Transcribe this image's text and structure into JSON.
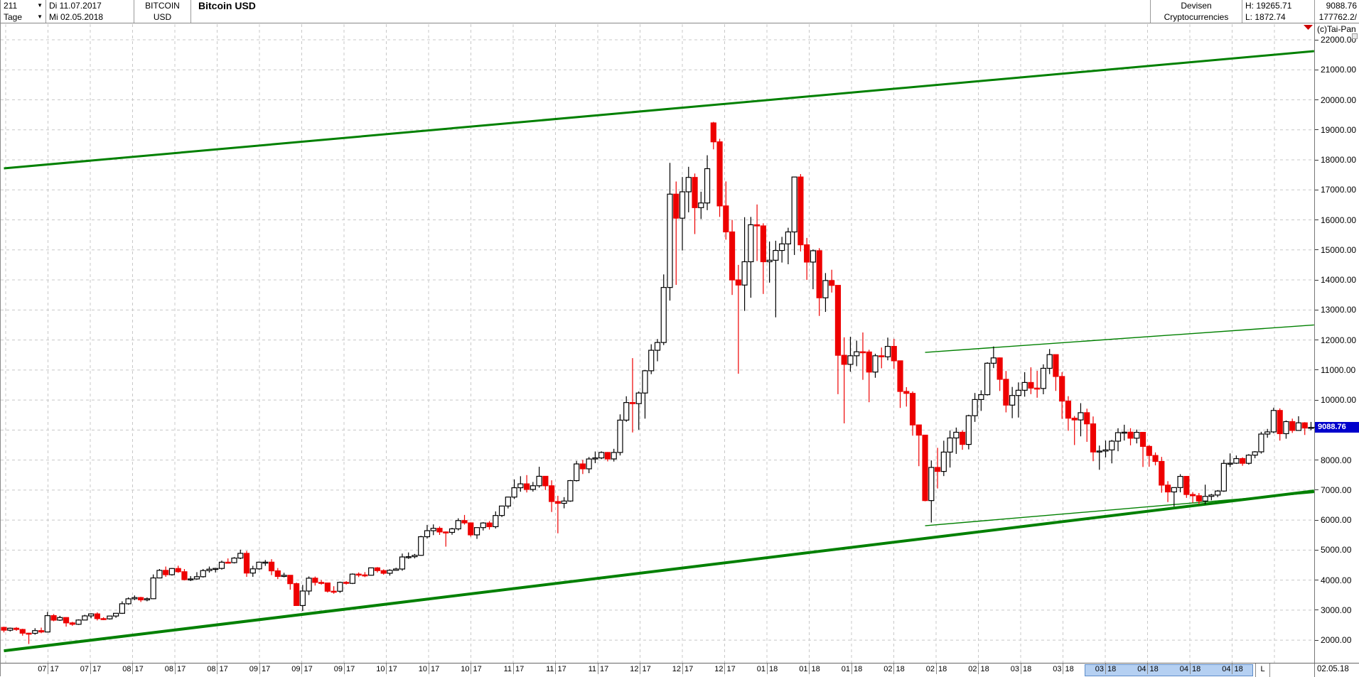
{
  "header": {
    "bars_count": "211",
    "period": "Tage",
    "dropdown_arrow": "▼",
    "date_from": "Di 11.07.2017",
    "date_to": "Mi 02.05.2018",
    "symbol_line1": "BITCOIN",
    "symbol_line2": "USD",
    "title": "Bitcoin USD",
    "category_line1": "Devisen",
    "category_line2": "Cryptocurrencies",
    "high_label": "H: 19265.71",
    "low_label": "L: 1872.74",
    "last_price": "9088.76",
    "volume": "177762.2/",
    "copyright": "(c)Tai-Pan"
  },
  "axis": {
    "price_ticks": [
      "22000.00",
      "21000.00",
      "20000.00",
      "19000.00",
      "18000.00",
      "17000.00",
      "16000.00",
      "15000.00",
      "14000.00",
      "13000.00",
      "12000.00",
      "11000.00",
      "10000.00",
      "9000.00",
      "8000.00",
      "7000.00",
      "6000.00",
      "5000.00",
      "4000.00",
      "3000.00",
      "2000.00"
    ],
    "price_values": [
      22000,
      21000,
      20000,
      19000,
      18000,
      17000,
      16000,
      15000,
      14000,
      13000,
      12000,
      11000,
      10000,
      9000,
      8000,
      7000,
      6000,
      5000,
      4000,
      3000,
      2000
    ],
    "current_price": 9088.76,
    "current_price_label": "9088.76",
    "date_ticks": [
      "07 17",
      "07 17",
      "08 17",
      "08 17",
      "08 17",
      "09 17",
      "09 17",
      "09 17",
      "10 17",
      "10 17",
      "10 17",
      "11 17",
      "11 17",
      "11 17",
      "12 17",
      "12 17",
      "12 17",
      "01 18",
      "01 18",
      "01 18",
      "02 18",
      "02 18",
      "02 18",
      "03 18",
      "03 18",
      "03 18",
      "04 18",
      "04 18",
      "04 18"
    ],
    "highlight_from": 25,
    "highlight_to": 28,
    "l_label": "L",
    "last_date_label": "02.05.18"
  },
  "chart_data": {
    "type": "candlestick",
    "title": "Bitcoin USD",
    "timeframe": "daily (Tage), weekdays 11.07.2017 - 02.05.2018",
    "bars": 211,
    "period_high": 19265.71,
    "period_low": 1872.74,
    "last": 9088.76,
    "ylim": [
      2000,
      22000
    ],
    "grid": "dashed",
    "ohlc": [
      [
        2425,
        2448,
        2260,
        2332
      ],
      [
        2332,
        2418,
        2290,
        2398
      ],
      [
        2398,
        2436,
        2310,
        2357
      ],
      [
        2357,
        2380,
        2150,
        2233
      ],
      [
        2233,
        2245,
        1873,
        2228
      ],
      [
        2228,
        2398,
        2183,
        2318
      ],
      [
        2318,
        2418,
        2232,
        2273
      ],
      [
        2273,
        2940,
        2263,
        2817
      ],
      [
        2817,
        2870,
        2630,
        2667
      ],
      [
        2667,
        2810,
        2642,
        2754
      ],
      [
        2754,
        2764,
        2451,
        2576
      ],
      [
        2576,
        2610,
        2478,
        2529
      ],
      [
        2529,
        2693,
        2508,
        2671
      ],
      [
        2671,
        2845,
        2667,
        2809
      ],
      [
        2809,
        2896,
        2729,
        2875
      ],
      [
        2875,
        2925,
        2657,
        2718
      ],
      [
        2718,
        2762,
        2668,
        2710
      ],
      [
        2710,
        2813,
        2685,
        2804
      ],
      [
        2804,
        2899,
        2744,
        2895
      ],
      [
        2895,
        3293,
        2874,
        3213
      ],
      [
        3213,
        3425,
        3180,
        3378
      ],
      [
        3378,
        3489,
        3333,
        3419
      ],
      [
        3419,
        3443,
        3272,
        3342
      ],
      [
        3342,
        3423,
        3295,
        3381
      ],
      [
        3381,
        4190,
        3367,
        4073
      ],
      [
        4073,
        4370,
        4060,
        4325
      ],
      [
        4325,
        4453,
        4110,
        4181
      ],
      [
        4181,
        4403,
        4150,
        4387
      ],
      [
        4387,
        4480,
        4243,
        4280
      ],
      [
        4280,
        4370,
        3991,
        4016
      ],
      [
        4016,
        4135,
        3970,
        4040
      ],
      [
        4040,
        4265,
        4013,
        4114
      ],
      [
        4114,
        4371,
        4085,
        4318
      ],
      [
        4318,
        4453,
        4251,
        4364
      ],
      [
        4364,
        4408,
        4255,
        4390
      ],
      [
        4390,
        4649,
        4350,
        4597
      ],
      [
        4597,
        4723,
        4566,
        4583
      ],
      [
        4583,
        4766,
        4556,
        4735
      ],
      [
        4735,
        5014,
        4700,
        4892
      ],
      [
        4892,
        4975,
        4108,
        4236
      ],
      [
        4236,
        4477,
        4110,
        4376
      ],
      [
        4376,
        4617,
        4345,
        4597
      ],
      [
        4597,
        4671,
        4475,
        4599
      ],
      [
        4599,
        4697,
        4166,
        4309
      ],
      [
        4309,
        4402,
        4032,
        4122
      ],
      [
        4122,
        4245,
        4094,
        4161
      ],
      [
        4161,
        4161,
        3681,
        3882
      ],
      [
        3882,
        3920,
        3143,
        3154
      ],
      [
        3154,
        3841,
        2972,
        3637
      ],
      [
        3637,
        4123,
        3505,
        4065
      ],
      [
        4065,
        4119,
        3820,
        3924
      ],
      [
        3924,
        4005,
        3851,
        3905
      ],
      [
        3905,
        3916,
        3587,
        3631
      ],
      [
        3631,
        3797,
        3547,
        3630
      ],
      [
        3630,
        3950,
        3576,
        3926
      ],
      [
        3926,
        3969,
        3853,
        3892
      ],
      [
        3892,
        4224,
        3870,
        4200
      ],
      [
        4200,
        4256,
        4102,
        4174
      ],
      [
        4174,
        4266,
        4100,
        4163
      ],
      [
        4163,
        4419,
        4150,
        4409
      ],
      [
        4409,
        4435,
        4254,
        4317
      ],
      [
        4317,
        4358,
        4183,
        4229
      ],
      [
        4229,
        4362,
        4151,
        4328
      ],
      [
        4328,
        4413,
        4320,
        4370
      ],
      [
        4370,
        4885,
        4313,
        4772
      ],
      [
        4772,
        4922,
        4709,
        4781
      ],
      [
        4781,
        4873,
        4724,
        4826
      ],
      [
        4826,
        5474,
        4811,
        5446
      ],
      [
        5446,
        5840,
        5385,
        5647
      ],
      [
        5647,
        5857,
        5499,
        5725
      ],
      [
        5725,
        5787,
        5506,
        5605
      ],
      [
        5605,
        5624,
        5115,
        5590
      ],
      [
        5590,
        5742,
        5512,
        5708
      ],
      [
        5708,
        6060,
        5655,
        5984
      ],
      [
        5984,
        6171,
        5851,
        5907
      ],
      [
        5907,
        5925,
        5450,
        5508
      ],
      [
        5508,
        5762,
        5374,
        5750
      ],
      [
        5750,
        5930,
        5653,
        5904
      ],
      [
        5904,
        5969,
        5684,
        5780
      ],
      [
        5780,
        6290,
        5720,
        6153
      ],
      [
        6153,
        6480,
        6103,
        6468
      ],
      [
        6468,
        6781,
        6387,
        6767
      ],
      [
        6767,
        7355,
        6703,
        7078
      ],
      [
        7078,
        7462,
        6945,
        7207
      ],
      [
        7207,
        7499,
        6920,
        7022
      ],
      [
        7022,
        7270,
        6950,
        7144
      ],
      [
        7144,
        7776,
        7080,
        7459
      ],
      [
        7459,
        7468,
        7001,
        7143
      ],
      [
        7143,
        7325,
        6270,
        6618
      ],
      [
        6618,
        6810,
        5560,
        6559
      ],
      [
        6559,
        6765,
        6392,
        6635
      ],
      [
        6635,
        7336,
        6610,
        7315
      ],
      [
        7315,
        7973,
        7286,
        7871
      ],
      [
        7871,
        8005,
        7534,
        7708
      ],
      [
        7708,
        8101,
        7563,
        8036
      ],
      [
        8036,
        8285,
        7897,
        8071
      ],
      [
        8071,
        8290,
        8031,
        8253
      ],
      [
        8253,
        8268,
        7956,
        8038
      ],
      [
        8038,
        8374,
        7952,
        8253
      ],
      [
        8253,
        9522,
        8153,
        9330
      ],
      [
        9330,
        10125,
        9273,
        9916
      ],
      [
        9916,
        11395,
        8919,
        9879
      ],
      [
        9879,
        10285,
        9011,
        10233
      ],
      [
        10233,
        11000,
        9380,
        10975
      ],
      [
        10975,
        11858,
        10862,
        11657
      ],
      [
        11657,
        12032,
        11290,
        11916
      ],
      [
        11916,
        14184,
        11830,
        13749
      ],
      [
        13749,
        17899,
        13311,
        16858
      ],
      [
        16858,
        17280,
        13836,
        16057
      ],
      [
        16057,
        17428,
        14980,
        16936
      ],
      [
        16936,
        17769,
        16252,
        17415
      ],
      [
        17415,
        17545,
        15528,
        16408
      ],
      [
        16408,
        16939,
        16030,
        16564
      ],
      [
        16564,
        18154,
        16324,
        17706
      ],
      [
        19231,
        19266,
        18350,
        18600
      ],
      [
        18600,
        18700,
        16100,
        16466
      ],
      [
        16466,
        17281,
        15342,
        15600
      ],
      [
        15600,
        16000,
        13500,
        14000
      ],
      [
        14000,
        14500,
        10875,
        13830
      ],
      [
        13830,
        16091,
        12969,
        14606
      ],
      [
        14606,
        16099,
        13406,
        15838
      ],
      [
        15838,
        16514,
        14631,
        15800
      ],
      [
        15800,
        15887,
        13533,
        14606
      ],
      [
        14606,
        15279,
        13910,
        14656
      ],
      [
        14656,
        15306,
        12755,
        14982
      ],
      [
        14982,
        15435,
        14579,
        15201
      ],
      [
        15201,
        15739,
        14522,
        15599
      ],
      [
        15599,
        17176,
        14832,
        17429
      ],
      [
        17429,
        17527,
        14950,
        15170
      ],
      [
        15170,
        15400,
        14000,
        14595
      ],
      [
        14595,
        15018,
        13691,
        14973
      ],
      [
        14973,
        15059,
        12801,
        13405
      ],
      [
        13405,
        14229,
        12935,
        13980
      ],
      [
        13980,
        14340,
        13580,
        13819
      ],
      [
        13819,
        13819,
        10194,
        11490
      ],
      [
        11490,
        12088,
        9222,
        11188
      ],
      [
        11188,
        12107,
        10942,
        11474
      ],
      [
        11474,
        11979,
        11126,
        11607
      ],
      [
        11607,
        12250,
        10673,
        11600
      ],
      [
        11600,
        11675,
        9927,
        10931
      ],
      [
        10931,
        11542,
        10741,
        11474
      ],
      [
        11474,
        11749,
        11057,
        11440
      ],
      [
        11440,
        12079,
        11322,
        11786
      ],
      [
        11786,
        12040,
        11031,
        11306
      ],
      [
        11306,
        11306,
        9736,
        10285
      ],
      [
        10285,
        10429,
        9781,
        10221
      ],
      [
        10221,
        10288,
        8812,
        9170
      ],
      [
        9170,
        9174,
        7796,
        8830
      ],
      [
        8830,
        8830,
        6626,
        6650
      ],
      [
        6650,
        7988,
        5920,
        7754
      ],
      [
        7754,
        8408,
        7054,
        7621
      ],
      [
        7621,
        8645,
        7466,
        8265
      ],
      [
        8265,
        8983,
        7751,
        8736
      ],
      [
        8736,
        9082,
        8205,
        8926
      ],
      [
        8926,
        8985,
        8342,
        8521
      ],
      [
        8521,
        9510,
        8355,
        9477
      ],
      [
        9477,
        10234,
        9272,
        10016
      ],
      [
        10016,
        10324,
        9637,
        10178
      ],
      [
        10178,
        11259,
        10149,
        11225
      ],
      [
        11225,
        11784,
        11064,
        11403
      ],
      [
        11403,
        11418,
        10301,
        10690
      ],
      [
        10690,
        10967,
        9588,
        9830
      ],
      [
        9830,
        10436,
        9395,
        10151
      ],
      [
        10151,
        10587,
        9416,
        10325
      ],
      [
        10325,
        10929,
        10111,
        10584
      ],
      [
        10584,
        11089,
        10196,
        10397
      ],
      [
        10397,
        10973,
        10076,
        10385
      ],
      [
        10385,
        11189,
        10191,
        11056
      ],
      [
        11056,
        11698,
        10863,
        11512
      ],
      [
        11512,
        11512,
        10303,
        10784
      ],
      [
        10784,
        10928,
        9373,
        9965
      ],
      [
        9965,
        10128,
        8975,
        9395
      ],
      [
        9395,
        9468,
        8500,
        9337
      ],
      [
        9337,
        9895,
        8790,
        9578
      ],
      [
        9578,
        9711,
        8607,
        9205
      ],
      [
        9205,
        9452,
        7962,
        8269
      ],
      [
        8269,
        8483,
        7676,
        8300
      ],
      [
        8300,
        8650,
        8091,
        8338
      ],
      [
        8338,
        8671,
        7890,
        8630
      ],
      [
        8630,
        9060,
        8294,
        8913
      ],
      [
        8913,
        9177,
        8650,
        8929
      ],
      [
        8929,
        9060,
        8490,
        8728
      ],
      [
        8728,
        9016,
        8555,
        8923
      ],
      [
        8923,
        8923,
        7770,
        8455
      ],
      [
        8455,
        8503,
        7778,
        8152
      ],
      [
        8152,
        8254,
        7823,
        7954
      ],
      [
        7954,
        8105,
        6912,
        7165
      ],
      [
        7165,
        7296,
        6600,
        6938
      ],
      [
        6938,
        7090,
        6450,
        7083
      ],
      [
        7083,
        7530,
        6925,
        7456
      ],
      [
        7456,
        7456,
        6740,
        6853
      ],
      [
        6853,
        6933,
        6579,
        6811
      ],
      [
        6811,
        6900,
        6530,
        6636
      ],
      [
        6636,
        7180,
        6526,
        6790
      ],
      [
        6790,
        6872,
        6660,
        6834
      ],
      [
        6834,
        7000,
        6764,
        6968
      ],
      [
        6968,
        8010,
        6940,
        7889
      ],
      [
        7889,
        8222,
        7769,
        7895
      ],
      [
        7895,
        8152,
        7871,
        8048
      ],
      [
        8048,
        8091,
        7810,
        7892
      ],
      [
        7892,
        8197,
        7848,
        8163
      ],
      [
        8163,
        8298,
        8060,
        8274
      ],
      [
        8274,
        8940,
        8215,
        8866
      ],
      [
        8866,
        9038,
        8742,
        8938
      ],
      [
        8938,
        9745,
        8894,
        9652
      ],
      [
        9652,
        9722,
        8647,
        8879
      ],
      [
        8879,
        9319,
        8711,
        9281
      ],
      [
        9281,
        9380,
        8903,
        8987
      ],
      [
        8987,
        9460,
        8987,
        9240
      ],
      [
        9240,
        9263,
        8836,
        9067
      ],
      [
        9067,
        9270,
        8992,
        9088.76
      ]
    ],
    "trendlines": [
      {
        "name": "upper-channel-line",
        "bar1": 0,
        "price1": 17716,
        "bar2": 210.5,
        "price2": 21621,
        "width": 3
      },
      {
        "name": "lower-channel-line",
        "bar1": 0,
        "price1": 1645,
        "bar2": 210.5,
        "price2": 6971,
        "width": 4
      },
      {
        "name": "mid-resistance-line",
        "bar1": 148,
        "price1": 11586,
        "bar2": 210.5,
        "price2": 12500,
        "width": 1.4
      },
      {
        "name": "mid-support-line",
        "bar1": 148,
        "price1": 5811,
        "bar2": 210.5,
        "price2": 6915,
        "width": 1.4
      }
    ],
    "colors": {
      "up_body": "#ffffff",
      "up_border": "#000000",
      "down_body": "#ee0000",
      "down_border": "#ee0000",
      "trendline": "#008000",
      "grid": "#c8c8c8",
      "current_price_bg": "#0000cc",
      "current_price_text": "#ffffff",
      "range_highlight": "#b5d0f2",
      "marker_triangle": "#cc0000"
    }
  }
}
